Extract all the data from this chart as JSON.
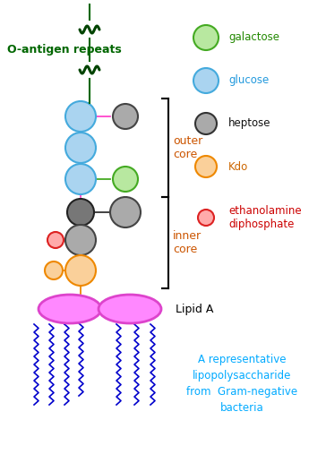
{
  "title": "A representative\nlipopolysaccharide\nfrom  Gram-negative\nbacteria",
  "title_color": "#00aaff",
  "bg_color": "#ffffff",
  "legend_items": [
    {
      "label": "galactose",
      "color_face": "#b8e8a0",
      "color_edge": "#44aa22",
      "text_color": "#228800"
    },
    {
      "label": "glucose",
      "color_face": "#aad4f0",
      "color_edge": "#44aadd",
      "text_color": "#2299dd"
    },
    {
      "label": "heptose",
      "color_face": "#aaaaaa",
      "color_edge": "#333333",
      "text_color": "#111111"
    },
    {
      "label": "Kdo",
      "color_face": "#fad09a",
      "color_edge": "#ee8800",
      "text_color": "#cc6600"
    },
    {
      "label": "ethanolamine\ndiphosphate",
      "color_face": "#ffaaaa",
      "color_edge": "#dd2222",
      "text_color": "#cc0000"
    }
  ],
  "o_antigen_label": "O-antigen repeats",
  "o_antigen_color": "#006600",
  "lipid_a_label": "Lipid A",
  "outer_core_label": "outer\ncore",
  "inner_core_label": "inner\ncore",
  "chain_color": "#0000cc",
  "lipid_color_face": "#ff88ff",
  "lipid_color_edge": "#dd44cc",
  "c_glucose_f": "#aad4f0",
  "c_glucose_e": "#44aadd",
  "c_galactose_f": "#b8e8a0",
  "c_galactose_e": "#44aa22",
  "c_heptose_f": "#aaaaaa",
  "c_heptose_e": "#444444",
  "c_heptose_dark_f": "#777777",
  "c_heptose_dark_e": "#222222",
  "c_kdo_f": "#fad09a",
  "c_kdo_e": "#ee8800",
  "c_ethanol_f": "#ffaaaa",
  "c_ethanol_e": "#dd2222",
  "tilde_color": "#004400",
  "stem_color": "#006600",
  "line_pink": "#ff44cc",
  "line_green": "#44aa22",
  "line_black": "#333333",
  "line_orange": "#ee8800"
}
